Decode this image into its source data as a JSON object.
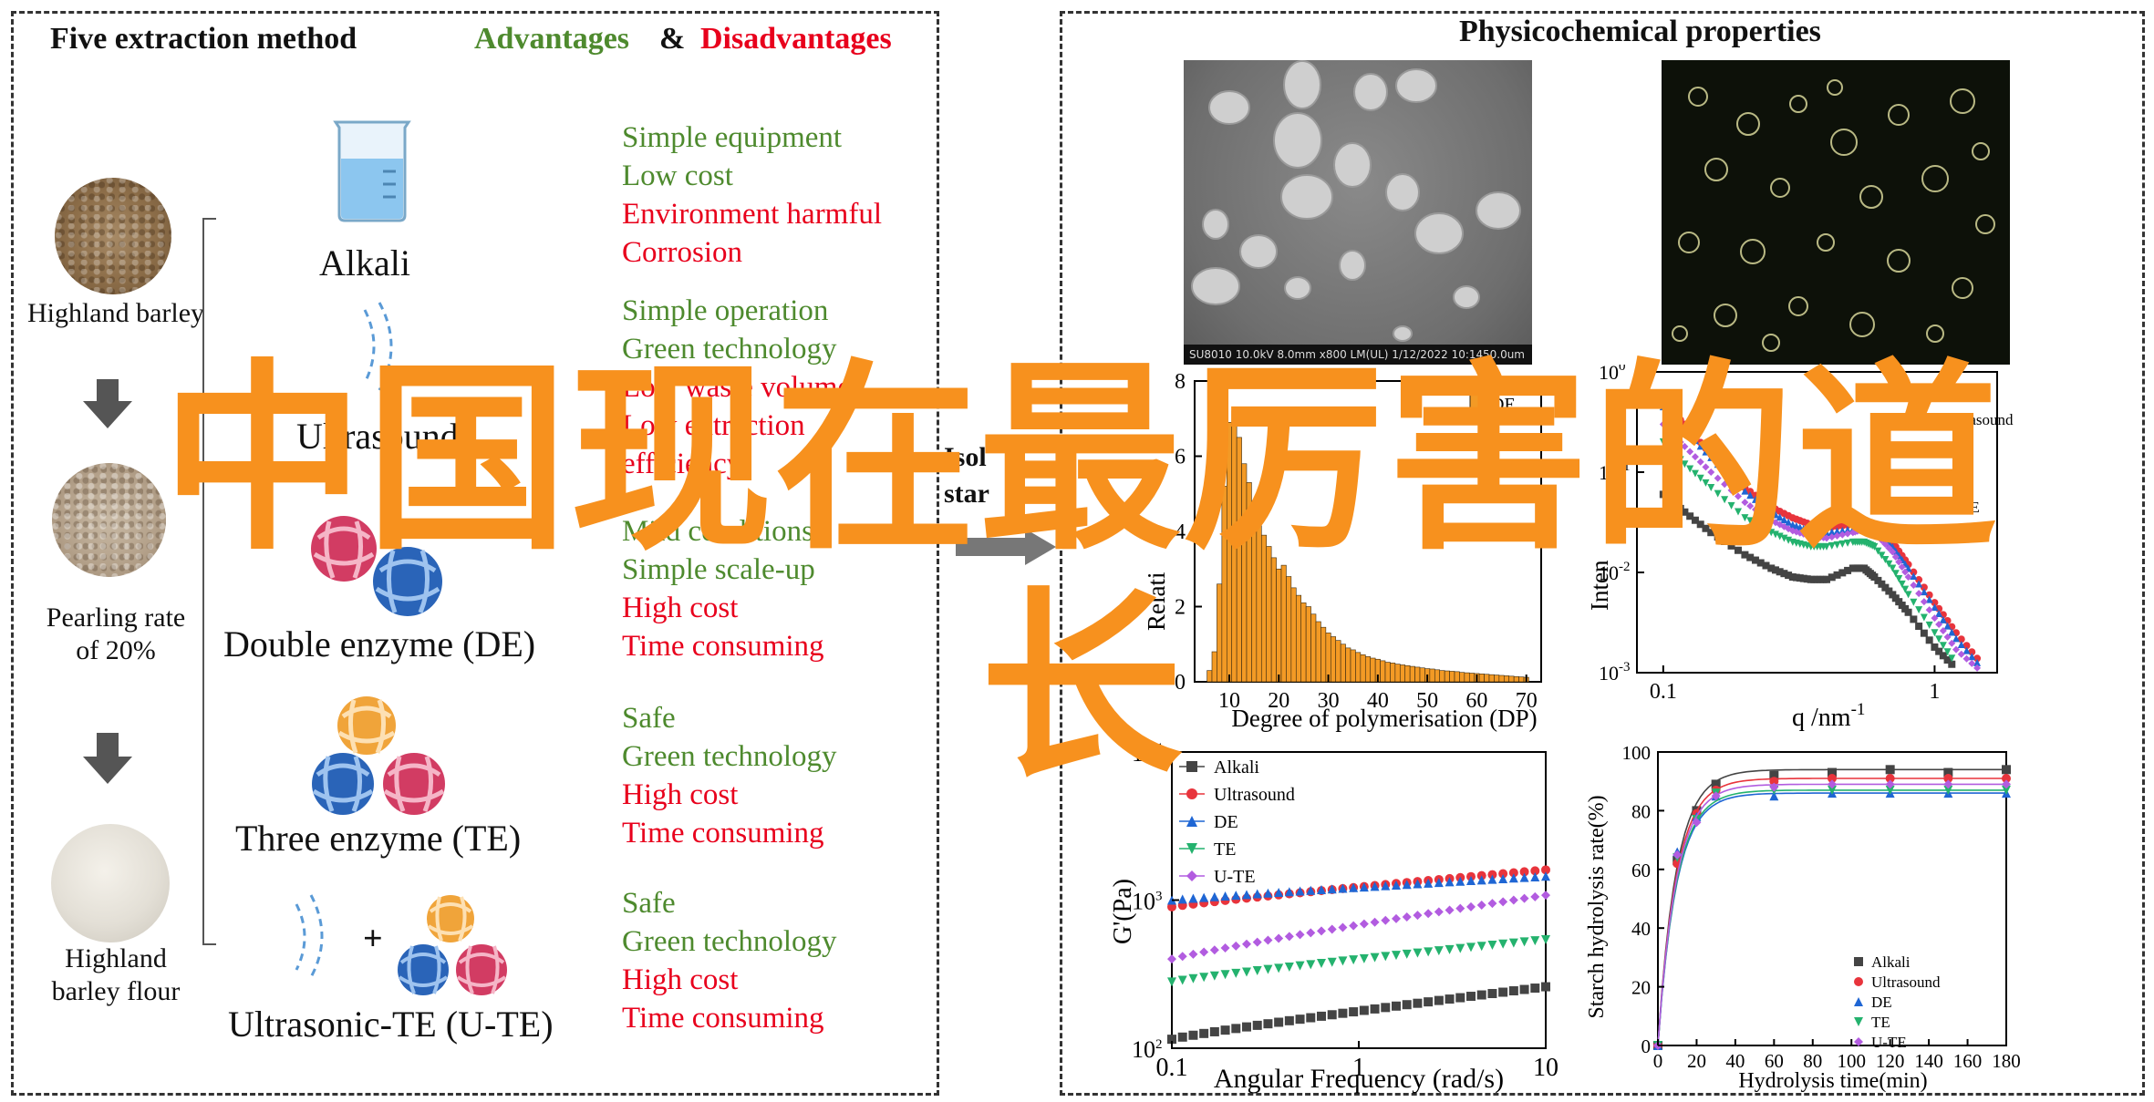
{
  "left": {
    "title": "Five extraction method",
    "advantages": "Advantages",
    "amp": "&",
    "disadvantages": "Disadvantages",
    "grains": [
      {
        "label": "Highland barley"
      },
      {
        "label": "Pearling rate\nof 20%"
      },
      {
        "label": "Highland\nbarley flour"
      }
    ],
    "methods": [
      {
        "label": "Alkali",
        "pros": [
          "Simple equipment",
          "Low cost"
        ],
        "cons": [
          "Environment harmful",
          "Corrosion"
        ]
      },
      {
        "label": "Ultrasound",
        "pros": [
          "Simple operation",
          "Green technology"
        ],
        "cons": [
          "Low waste volume",
          "Low extraction",
          "efficiency"
        ]
      },
      {
        "label": "Double enzyme (DE)",
        "pros": [
          "Mild conditions",
          "Simple scale-up"
        ],
        "cons": [
          "High cost",
          "Time consuming"
        ]
      },
      {
        "label": "Three enzyme (TE)",
        "pros": [
          "Safe",
          "Green technology"
        ],
        "cons": [
          "High cost",
          "Time consuming"
        ]
      },
      {
        "label": "Ultrasonic-TE (U-TE)",
        "pros": [
          "Safe",
          "Green technology"
        ],
        "cons": [
          "High cost",
          "Time consuming"
        ]
      }
    ],
    "plus": "+",
    "arrow_text": [
      "Isol",
      "star"
    ]
  },
  "right": {
    "title": "Physicochemical properties",
    "sem_caption": "SU8010 10.0kV 8.0mm x800 LM(UL) 1/12/2022 10:14",
    "sem_scale": "50.0um"
  },
  "watermark": {
    "line1": "中国现在最厉害的道",
    "line2": "长"
  },
  "colors": {
    "green": "#4e8a2e",
    "red": "#e8001c",
    "orange_watermark": "#f7911e",
    "bar_orange": "#f39a25"
  },
  "chart_data": [
    {
      "id": "dp-histogram",
      "type": "bar",
      "xlabel": "Degree of polymerisation (DP)",
      "ylabel": "Relati",
      "legend": [
        "DE"
      ],
      "x": [
        6,
        7,
        8,
        9,
        10,
        11,
        12,
        13,
        14,
        15,
        16,
        17,
        18,
        19,
        20,
        21,
        22,
        23,
        24,
        25,
        26,
        27,
        28,
        29,
        30,
        31,
        32,
        33,
        34,
        35,
        36,
        37,
        38,
        39,
        40,
        41,
        42,
        43,
        44,
        45,
        46,
        47,
        48,
        49,
        50,
        51,
        52,
        53,
        54,
        55,
        56,
        57,
        58,
        59,
        60,
        61,
        62,
        63,
        64,
        65,
        66,
        67,
        68,
        69,
        70
      ],
      "values": [
        0.3,
        0.8,
        2.6,
        5.2,
        6.9,
        7.2,
        6.5,
        5.8,
        5.3,
        4.8,
        4.2,
        3.9,
        3.6,
        3.3,
        3.0,
        3.1,
        2.8,
        2.5,
        2.3,
        2.1,
        2.0,
        1.8,
        1.6,
        1.45,
        1.3,
        1.2,
        1.1,
        1.0,
        0.9,
        0.85,
        0.78,
        0.72,
        0.67,
        0.63,
        0.6,
        0.56,
        0.52,
        0.5,
        0.47,
        0.45,
        0.43,
        0.41,
        0.39,
        0.37,
        0.35,
        0.34,
        0.32,
        0.3,
        0.29,
        0.28,
        0.27,
        0.25,
        0.24,
        0.23,
        0.22,
        0.21,
        0.2,
        0.19,
        0.18,
        0.17,
        0.16,
        0.15,
        0.14,
        0.13,
        0.12
      ],
      "xlim": [
        3,
        73
      ],
      "ylim": [
        0,
        8
      ],
      "xticks": [
        "10",
        "20",
        "30",
        "40",
        "50",
        "60",
        "70"
      ],
      "yticks": [
        "0",
        "2",
        "4",
        "6",
        "8"
      ]
    },
    {
      "id": "saxs",
      "type": "scatter",
      "xlabel": "q /nm",
      "xlabel_sup": "-1",
      "ylabel": "Inten",
      "x_scale": "log",
      "y_scale": "log",
      "legend": [
        "Alkali",
        "Ultrasound",
        "DE",
        "TE",
        "U-TE"
      ],
      "xticks": [
        "0.1",
        "1"
      ],
      "yticks": [
        "10^-3",
        "10^-2",
        "10^-1",
        "10^0"
      ],
      "series": [
        {
          "name": "Alkali",
          "color": "#444444",
          "marker": "square",
          "x": [
            0.1,
            0.12,
            0.15,
            0.2,
            0.25,
            0.3,
            0.35,
            0.4,
            0.5,
            0.55,
            0.6,
            0.7,
            0.8,
            1.0,
            1.2
          ],
          "y": [
            0.06,
            0.04,
            0.025,
            0.015,
            0.011,
            0.009,
            0.0085,
            0.0085,
            0.011,
            0.011,
            0.009,
            0.006,
            0.004,
            0.0018,
            0.0011
          ]
        },
        {
          "name": "Ultrasound",
          "color": "#e8343c",
          "marker": "circle",
          "x": [
            0.1,
            0.12,
            0.15,
            0.2,
            0.25,
            0.3,
            0.35,
            0.4,
            0.5,
            0.55,
            0.6,
            0.7,
            0.8,
            1.0,
            1.2,
            1.5
          ],
          "y": [
            0.5,
            0.3,
            0.15,
            0.07,
            0.045,
            0.035,
            0.03,
            0.028,
            0.03,
            0.032,
            0.03,
            0.02,
            0.012,
            0.005,
            0.0025,
            0.0012
          ]
        },
        {
          "name": "DE",
          "color": "#1f66d4",
          "marker": "triangle-up",
          "x": [
            0.1,
            0.12,
            0.15,
            0.2,
            0.25,
            0.3,
            0.35,
            0.4,
            0.5,
            0.55,
            0.6,
            0.7,
            0.8,
            1.0,
            1.2,
            1.5
          ],
          "y": [
            0.45,
            0.27,
            0.14,
            0.065,
            0.04,
            0.03,
            0.026,
            0.025,
            0.027,
            0.03,
            0.028,
            0.018,
            0.011,
            0.0045,
            0.0022,
            0.0011
          ]
        },
        {
          "name": "TE",
          "color": "#24b26e",
          "marker": "triangle-down",
          "x": [
            0.1,
            0.12,
            0.15,
            0.2,
            0.25,
            0.3,
            0.35,
            0.4,
            0.5,
            0.55,
            0.6,
            0.7,
            0.8,
            1.0,
            1.2
          ],
          "y": [
            0.2,
            0.12,
            0.07,
            0.035,
            0.025,
            0.02,
            0.018,
            0.018,
            0.02,
            0.02,
            0.018,
            0.011,
            0.006,
            0.0025,
            0.0012
          ]
        },
        {
          "name": "U-TE",
          "color": "#b25ce0",
          "marker": "diamond",
          "x": [
            0.1,
            0.12,
            0.15,
            0.2,
            0.25,
            0.3,
            0.35,
            0.4,
            0.5,
            0.55,
            0.6,
            0.7,
            0.8,
            1.0,
            1.2,
            1.5
          ],
          "y": [
            0.3,
            0.18,
            0.1,
            0.05,
            0.033,
            0.026,
            0.023,
            0.022,
            0.025,
            0.027,
            0.025,
            0.016,
            0.009,
            0.0035,
            0.0017,
            0.001
          ]
        }
      ]
    },
    {
      "id": "rheology",
      "type": "scatter",
      "xlabel": "Angular Frequency (rad/s)",
      "ylabel": "G'(Pa)",
      "x_scale": "log",
      "y_scale": "log",
      "xlim": [
        0.1,
        10
      ],
      "ylim": [
        100,
        10000
      ],
      "xticks": [
        "0.1",
        "1",
        "10"
      ],
      "yticks": [
        "10^2",
        "10^3",
        "10^4"
      ],
      "legend": [
        "Alkali",
        "Ultrasound",
        "DE",
        "TE",
        "U-TE"
      ],
      "series": [
        {
          "name": "Alkali",
          "color": "#444444",
          "marker": "square",
          "x_range": [
            0.1,
            10
          ],
          "y_range": [
            115,
            260
          ]
        },
        {
          "name": "Ultrasound",
          "color": "#e8343c",
          "marker": "circle",
          "x_range": [
            0.1,
            10
          ],
          "y_range": [
            900,
            1600
          ]
        },
        {
          "name": "DE",
          "color": "#1f66d4",
          "marker": "triangle-up",
          "x_range": [
            0.1,
            10
          ],
          "y_range": [
            1000,
            1450
          ]
        },
        {
          "name": "TE",
          "color": "#24b26e",
          "marker": "triangle-down",
          "x_range": [
            0.1,
            10
          ],
          "y_range": [
            280,
            540
          ]
        },
        {
          "name": "U-TE",
          "color": "#b25ce0",
          "marker": "diamond",
          "x_range": [
            0.1,
            10
          ],
          "y_range": [
            400,
            1080
          ]
        }
      ]
    },
    {
      "id": "hydrolysis",
      "type": "line",
      "xlabel": "Hydrolysis time(min)",
      "ylabel": "Starch hydrolysis rate(%)",
      "xlim": [
        0,
        180
      ],
      "ylim": [
        0,
        100
      ],
      "xticks": [
        "0",
        "20",
        "40",
        "60",
        "80",
        "100",
        "120",
        "140",
        "160",
        "180"
      ],
      "yticks": [
        "0",
        "20",
        "40",
        "60",
        "80",
        "100"
      ],
      "legend": [
        "Alkali",
        "Ultrasound",
        "DE",
        "TE",
        "U-TE"
      ],
      "x": [
        0,
        10,
        20,
        30,
        60,
        90,
        120,
        150,
        180
      ],
      "series": [
        {
          "name": "Alkali",
          "color": "#444444",
          "marker": "square",
          "values": [
            0,
            63,
            80,
            89,
            92,
            93,
            94,
            93,
            94
          ]
        },
        {
          "name": "Ultrasound",
          "color": "#e8343c",
          "marker": "circle",
          "values": [
            0,
            62,
            79,
            87,
            90,
            91,
            91,
            91,
            91
          ]
        },
        {
          "name": "DE",
          "color": "#1f66d4",
          "marker": "triangle-up",
          "values": [
            0,
            66,
            78,
            85,
            85,
            86,
            86,
            86,
            86
          ]
        },
        {
          "name": "TE",
          "color": "#24b26e",
          "marker": "triangle-down",
          "values": [
            0,
            64,
            77,
            86,
            87,
            87,
            87,
            87,
            87
          ]
        },
        {
          "name": "U-TE",
          "color": "#b25ce0",
          "marker": "diamond",
          "values": [
            0,
            65,
            76,
            85,
            88,
            89,
            89,
            89,
            89
          ]
        }
      ]
    }
  ]
}
